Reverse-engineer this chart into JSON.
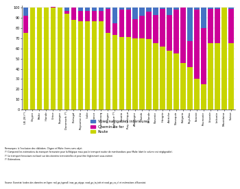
{
  "countries": [
    "UE-28 (*)",
    "Chypre",
    "Malte",
    "Irlande",
    "Grèce",
    "Espagne",
    "Danemark (*)",
    "Portugal",
    "Royaume-Uni",
    "Italie",
    "France",
    "Luxembourg",
    "Pologne",
    "Belgique (*)",
    "Croatie",
    "Roy. tchèque",
    "Allemagne",
    "Suède",
    "Finlande",
    "Slovénie",
    "Hongrie",
    "Autriche",
    "Slovaquie",
    "Bulgarie",
    "Pays-Bas",
    "Estonie",
    "Roumanie",
    "Lituanie",
    "Lettonie",
    "Macédoine",
    "Suisse"
  ],
  "road": [
    75,
    100,
    100,
    100,
    100,
    100,
    94,
    88,
    87,
    87,
    87,
    87,
    75,
    73,
    71,
    71,
    70,
    70,
    69,
    65,
    62,
    58,
    55,
    46,
    42,
    30,
    25,
    65,
    65,
    100,
    65
  ],
  "rail": [
    17,
    0,
    0,
    0,
    1,
    0,
    3,
    12,
    10,
    10,
    10,
    10,
    24,
    12,
    27,
    27,
    19,
    22,
    27,
    28,
    37,
    35,
    43,
    54,
    25,
    68,
    55,
    34,
    34,
    0,
    34
  ],
  "inland_water": [
    8,
    0,
    0,
    0,
    0,
    0,
    3,
    0,
    3,
    3,
    3,
    3,
    1,
    15,
    2,
    2,
    11,
    8,
    4,
    7,
    1,
    7,
    2,
    0,
    33,
    2,
    20,
    1,
    1,
    0,
    1
  ],
  "road_color": "#c8d400",
  "rail_color": "#cc0099",
  "inland_color": "#4472c4",
  "legend_labels": [
    "Voies navigables intérieures",
    "Chemin de fer",
    "Route"
  ],
  "ylabel_ticks": [
    0,
    10,
    20,
    30,
    40,
    50,
    60,
    70,
    80,
    90,
    100
  ],
  "source_text": "Source: Eurostat (codes des données en ligne: rail_go_typeall, iww_go_atygo, road_go_ta_tott et road_go_ca_c) et estimations d'Eurostat.",
  "footnote_lines": [
    "Remarques: à l'exclusion des câblodors. Chypre et Malte: Items sans objet.",
    "(*) Comprend les estimations du transport ferroviaire pour la Belgique mais pas le transport routier de marchandises pour Malte (dont le volume est négligeable).",
    "(*) Le transport ferroviaire est basé sur des données trimestrielles et peut être légèrement sous-estimé.",
    "(*) Estimations."
  ]
}
